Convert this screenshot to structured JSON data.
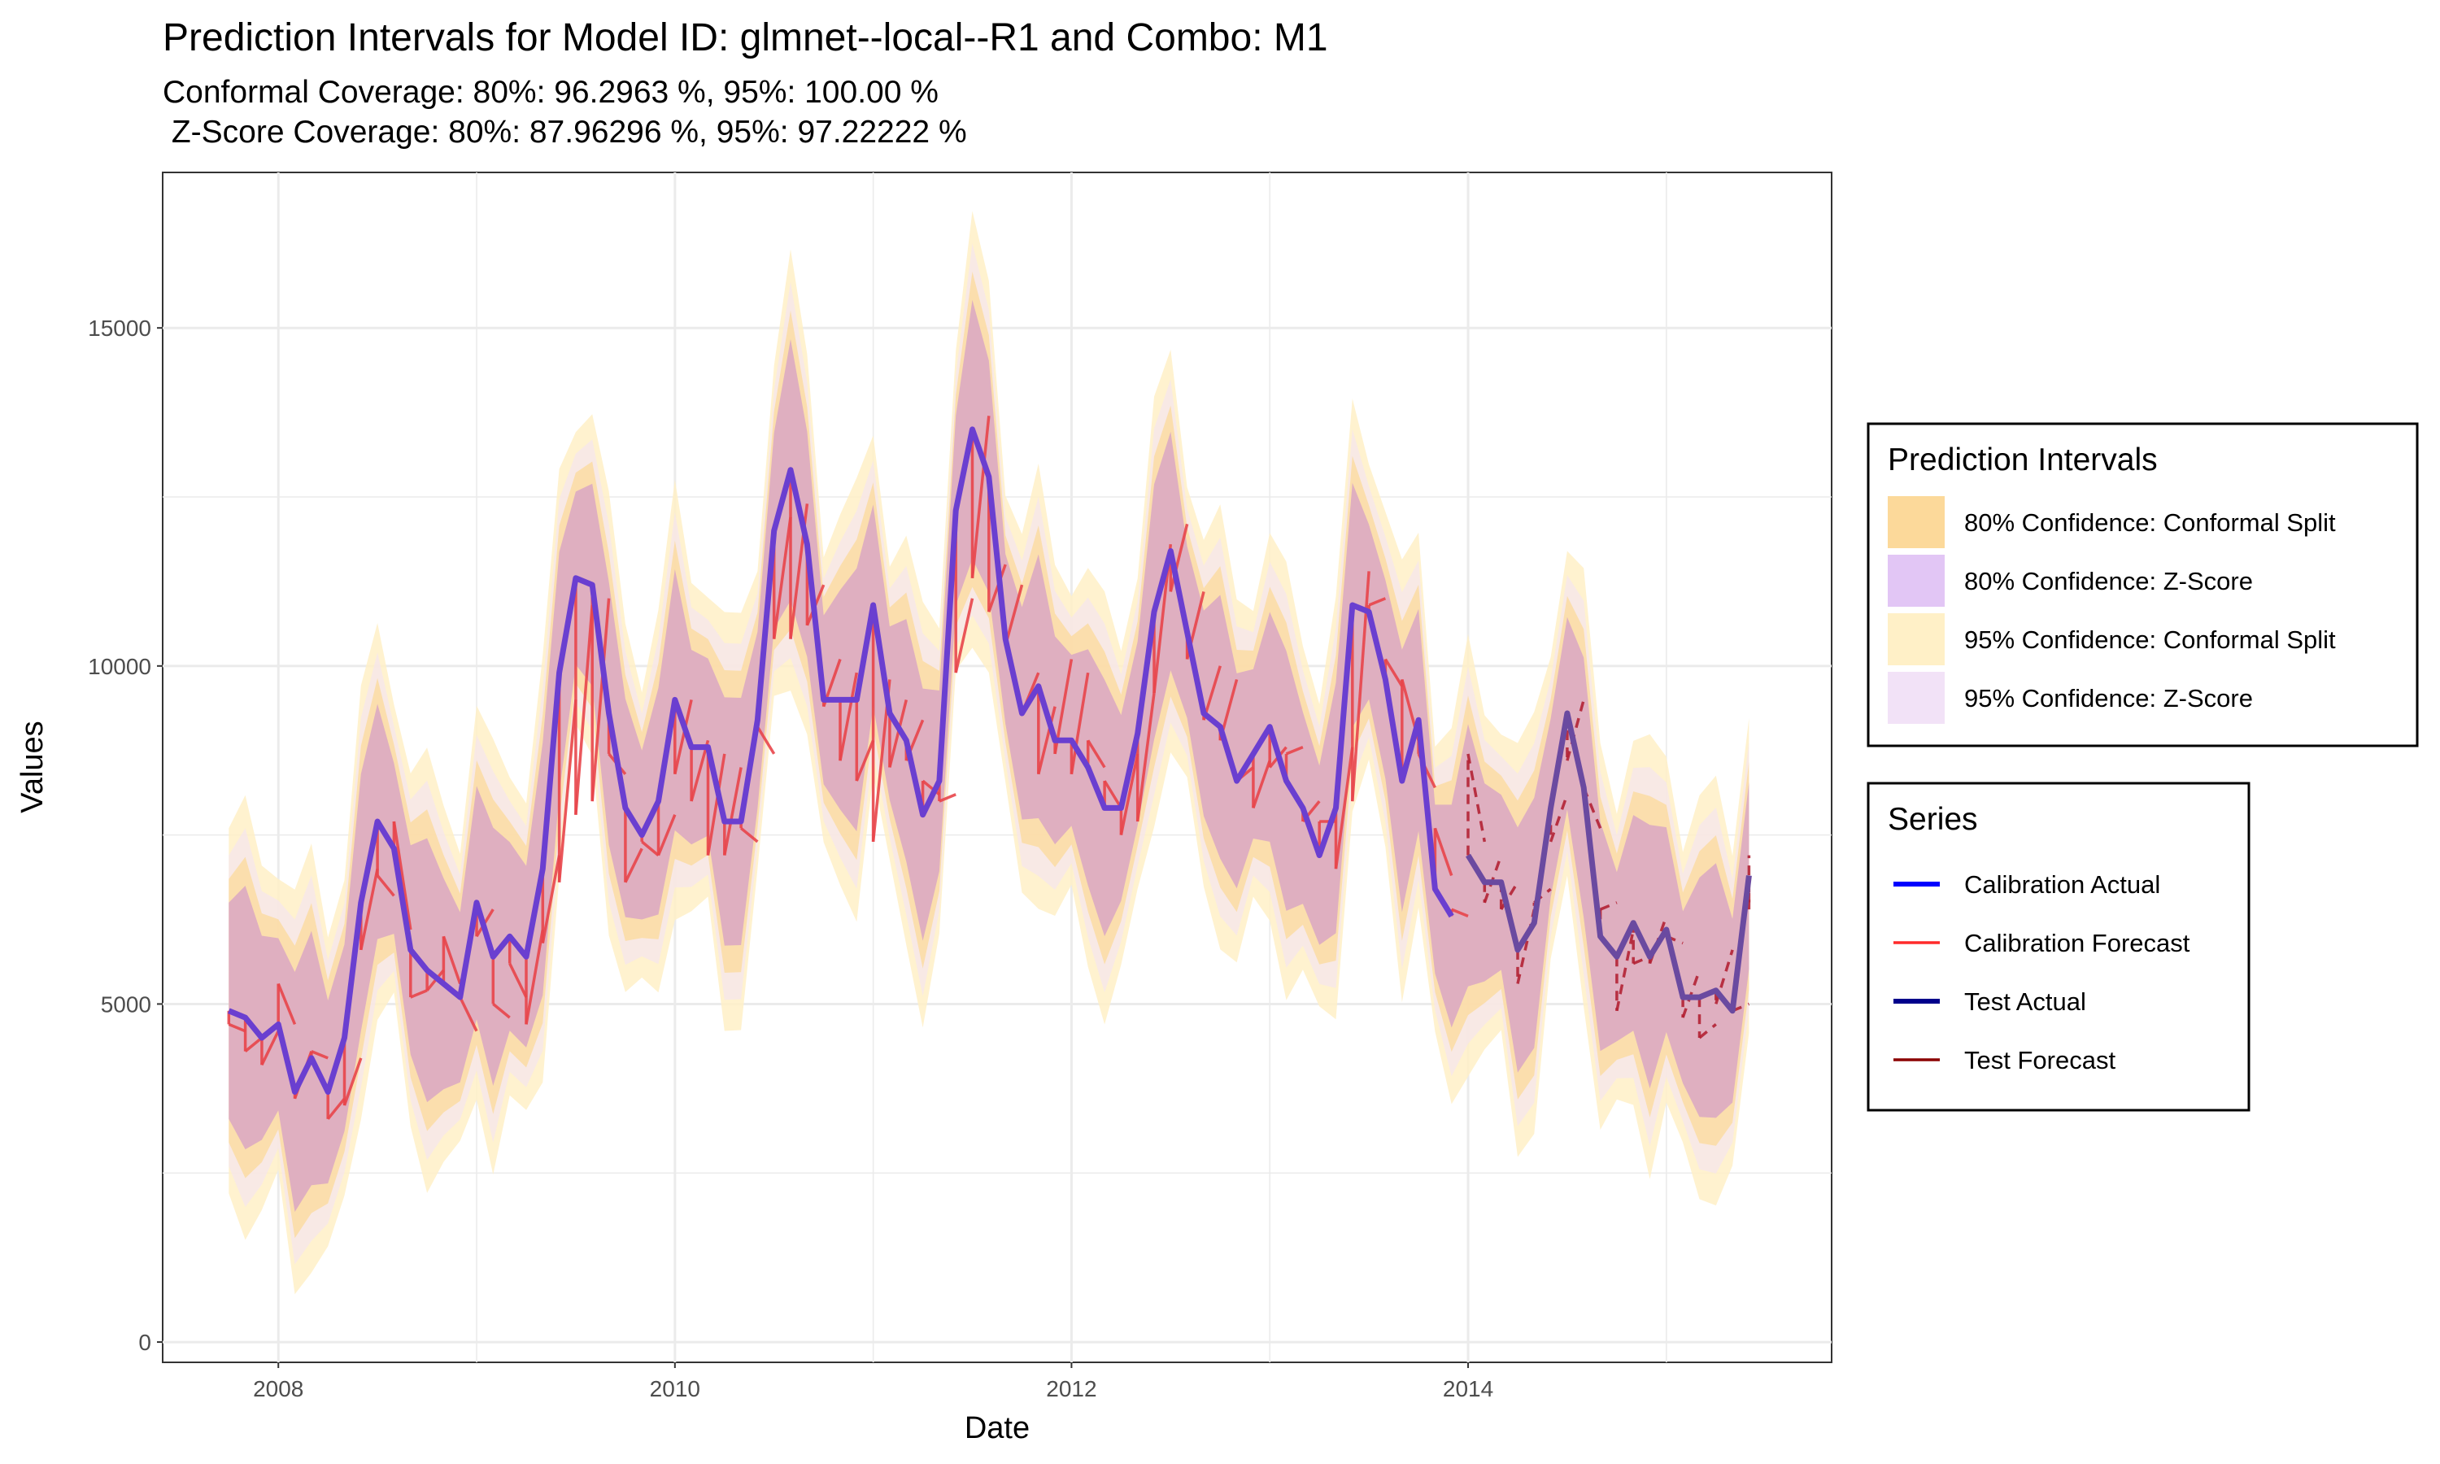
{
  "chart_data": {
    "type": "line",
    "title": "Prediction Intervals for Model ID: glmnet--local--R1 and Combo: M1",
    "subtitle_line1": "Conformal Coverage: 80%: 96.2963 %, 95%: 100.00 %",
    "subtitle_line2": " Z-Score Coverage: 80%: 87.96296 %, 95%: 97.22222 %",
    "xlabel": "Date",
    "ylabel": "Values",
    "xlim": [
      "2007-06-01",
      "2015-11-01"
    ],
    "ylim": [
      -300,
      17300
    ],
    "x_ticks": [
      "2008",
      "2010",
      "2012",
      "2014"
    ],
    "y_ticks": [
      "0",
      "5000",
      "10000",
      "15000"
    ],
    "grid": true,
    "legend_position": "right",
    "colors": {
      "calibration_actual": "#0000ff",
      "calibration_forecast": "#ff2a2a",
      "test_actual": "#00008b",
      "test_forecast": "#8b0000",
      "conformal_80": "#fcd99a",
      "zscore_80": "#d9b3f2",
      "conformal_95": "#fff0c7",
      "zscore_95": "#f2e2f7"
    },
    "legends": [
      {
        "title": "Prediction Intervals",
        "items": [
          {
            "label": "80% Confidence: Conformal Split",
            "key": "conformal_80"
          },
          {
            "label": "80% Confidence: Z-Score",
            "key": "zscore_80"
          },
          {
            "label": "95% Confidence: Conformal Split",
            "key": "conformal_95"
          },
          {
            "label": "95% Confidence: Z-Score",
            "key": "zscore_95"
          }
        ]
      },
      {
        "title": "Series",
        "items": [
          {
            "label": "Calibration Actual",
            "key": "calibration_actual"
          },
          {
            "label": "Calibration Forecast",
            "key": "calibration_forecast"
          },
          {
            "label": "Test Actual",
            "key": "test_actual"
          },
          {
            "label": "Test Forecast",
            "key": "test_forecast"
          }
        ]
      }
    ],
    "x": [
      "2007-10",
      "2007-11",
      "2007-12",
      "2008-01",
      "2008-02",
      "2008-03",
      "2008-04",
      "2008-05",
      "2008-06",
      "2008-07",
      "2008-08",
      "2008-09",
      "2008-10",
      "2008-11",
      "2008-12",
      "2009-01",
      "2009-02",
      "2009-03",
      "2009-04",
      "2009-05",
      "2009-06",
      "2009-07",
      "2009-08",
      "2009-09",
      "2009-10",
      "2009-11",
      "2009-12",
      "2010-01",
      "2010-02",
      "2010-03",
      "2010-04",
      "2010-05",
      "2010-06",
      "2010-07",
      "2010-08",
      "2010-09",
      "2010-10",
      "2010-11",
      "2010-12",
      "2011-01",
      "2011-02",
      "2011-03",
      "2011-04",
      "2011-05",
      "2011-06",
      "2011-07",
      "2011-08",
      "2011-09",
      "2011-10",
      "2011-11",
      "2011-12",
      "2012-01",
      "2012-02",
      "2012-03",
      "2012-04",
      "2012-05",
      "2012-06",
      "2012-07",
      "2012-08",
      "2012-09",
      "2012-10",
      "2012-11",
      "2012-12",
      "2013-01",
      "2013-02",
      "2013-03",
      "2013-04",
      "2013-05",
      "2013-06",
      "2013-07",
      "2013-08",
      "2013-09",
      "2013-10",
      "2013-11",
      "2013-12",
      "2014-01",
      "2014-02",
      "2014-03",
      "2014-04",
      "2014-05",
      "2014-06",
      "2014-07",
      "2014-08",
      "2014-09",
      "2014-10",
      "2014-11",
      "2014-12",
      "2015-01",
      "2015-02",
      "2015-03",
      "2015-04",
      "2015-05",
      "2015-06"
    ],
    "actual": [
      4900,
      4800,
      4500,
      4700,
      3700,
      4200,
      3700,
      4500,
      6500,
      7700,
      7300,
      5800,
      5500,
      5300,
      5100,
      6500,
      5700,
      6000,
      5700,
      7000,
      9900,
      11300,
      11200,
      9300,
      7900,
      7500,
      8000,
      9500,
      8800,
      8800,
      7700,
      7700,
      9200,
      12000,
      12900,
      11800,
      9500,
      9500,
      9500,
      10900,
      9300,
      8900,
      7800,
      8300,
      12300,
      13500,
      12800,
      10400,
      9300,
      9700,
      8900,
      8900,
      8500,
      7900,
      7900,
      9000,
      10800,
      11700,
      10500,
      9300,
      9100,
      8300,
      8700,
      9100,
      8300,
      7900,
      7200,
      7900,
      10900,
      10800,
      9800,
      8300,
      9200,
      6700,
      6300,
      7200,
      6800,
      6800,
      5800,
      6200,
      7900,
      9300,
      8200,
      6000,
      5700,
      6200,
      5700,
      6100,
      5100,
      5100,
      5200,
      4900,
      6900
    ],
    "forecast_start": [
      4700,
      4300,
      4100,
      5300,
      3600,
      4300,
      3300,
      3500,
      5800,
      6900,
      7700,
      5100,
      5200,
      6000,
      5100,
      6000,
      5000,
      5600,
      4700,
      5900,
      6800,
      7800,
      8000,
      8700,
      6800,
      7400,
      7200,
      8400,
      8000,
      7200,
      7200,
      7600,
      9100,
      10400,
      10400,
      10600,
      9400,
      8600,
      8300,
      7400,
      8500,
      8600,
      8300,
      8000,
      9900,
      11300,
      10800,
      10300,
      9300,
      8400,
      8700,
      8400,
      8900,
      8300,
      7500,
      7700,
      9600,
      11100,
      10100,
      9200,
      8900,
      8300,
      7900,
      8500,
      8700,
      7700,
      7700,
      7000,
      8000,
      10900,
      10100,
      9800,
      8700,
      7600,
      6400,
      8700,
      6500,
      6400,
      5300,
      6500,
      7400,
      8600,
      8200,
      6400,
      4900,
      5600,
      5600,
      6000,
      4800,
      4500,
      5000,
      4900,
      6400
    ],
    "forecast_end": [
      4600,
      4500,
      4600,
      4700,
      4300,
      4200,
      3600,
      4200,
      7000,
      6600,
      6100,
      5200,
      5500,
      5300,
      4600,
      6400,
      4800,
      5100,
      6100,
      7200,
      9500,
      10900,
      11000,
      8400,
      7300,
      7200,
      7800,
      9500,
      8900,
      8700,
      8500,
      7400,
      8700,
      12200,
      12400,
      11200,
      10100,
      9900,
      8900,
      9800,
      9500,
      9200,
      8100,
      8100,
      11000,
      13700,
      11500,
      11200,
      9900,
      9400,
      10100,
      9900,
      8500,
      7900,
      8700,
      9600,
      11800,
      12100,
      11100,
      10000,
      9800,
      8500,
      8600,
      8800,
      8800,
      8000,
      7700,
      8800,
      11400,
      11000,
      9700,
      8900,
      8200,
      6900,
      6300,
      7400,
      7200,
      6800,
      6400,
      6700,
      8100,
      9500,
      7600,
      6500,
      6100,
      5700,
      6300,
      5900,
      5500,
      4700,
      5800,
      5000,
      7200
    ]
  }
}
